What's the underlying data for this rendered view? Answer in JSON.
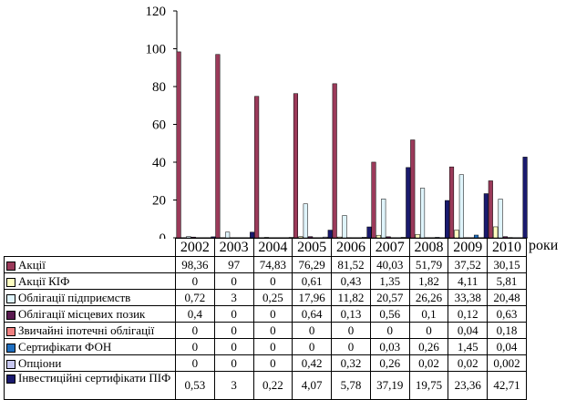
{
  "chart_data": {
    "type": "bar",
    "categories": [
      "2002",
      "2003",
      "2004",
      "2005",
      "2006",
      "2007",
      "2008",
      "2009",
      "2010"
    ],
    "xlabel": "роки",
    "ylim": [
      0,
      120
    ],
    "yticks": [
      0,
      20,
      40,
      60,
      80,
      100,
      120
    ],
    "grid": false,
    "legend": "table-below",
    "series": [
      {
        "name": "Акції",
        "color": "#9b3a5a",
        "values": [
          98.36,
          97,
          74.83,
          76.29,
          81.52,
          40.03,
          51.79,
          37.52,
          30.15
        ],
        "labels": [
          "98,36",
          "97",
          "74,83",
          "76,29",
          "81,52",
          "40,03",
          "51,79",
          "37,52",
          "30,15"
        ]
      },
      {
        "name": "Акції КІФ",
        "color": "#ffffc0",
        "values": [
          0,
          0,
          0,
          0.61,
          0.43,
          1.35,
          1.82,
          4.11,
          5.81
        ],
        "labels": [
          "0",
          "0",
          "0",
          "0,61",
          "0,43",
          "1,35",
          "1,82",
          "4,11",
          "5,81"
        ]
      },
      {
        "name": "Облігації підприємств",
        "color": "#dff4fb",
        "values": [
          0.72,
          3,
          0.25,
          17.96,
          11.82,
          20.57,
          26.26,
          33.38,
          20.48
        ],
        "labels": [
          "0,72",
          "3",
          "0,25",
          "17,96",
          "11,82",
          "20,57",
          "26,26",
          "33,38",
          "20,48"
        ]
      },
      {
        "name": "Облігації місцевих позик",
        "color": "#5a1a50",
        "values": [
          0.4,
          0,
          0,
          0.64,
          0.13,
          0.56,
          0.1,
          0.12,
          0.63
        ],
        "labels": [
          "0,4",
          "0",
          "0",
          "0,64",
          "0,13",
          "0,56",
          "0,1",
          "0,12",
          "0,63"
        ]
      },
      {
        "name": "Звичайні іпотечні облігації",
        "color": "#f08080",
        "values": [
          0,
          0,
          0,
          0,
          0,
          0,
          0,
          0.04,
          0.18
        ],
        "labels": [
          "0",
          "0",
          "0",
          "0",
          "0",
          "0",
          "0",
          "0,04",
          "0,18"
        ]
      },
      {
        "name": "Сертифікати ФОН",
        "color": "#1f6fc0",
        "values": [
          0,
          0,
          0,
          0,
          0,
          0.03,
          0.26,
          1.45,
          0.04
        ],
        "labels": [
          "0",
          "0",
          "0",
          "0",
          "0",
          "0,03",
          "0,26",
          "1,45",
          "0,04"
        ]
      },
      {
        "name": "Опціони",
        "color": "#c8c8f0",
        "values": [
          0,
          0,
          0,
          0.42,
          0.32,
          0.26,
          0.02,
          0.02,
          0.002
        ],
        "labels": [
          "0",
          "0",
          "0",
          "0,42",
          "0,32",
          "0,26",
          "0,02",
          "0,02",
          "0,002"
        ]
      },
      {
        "name": "Інвестиційні сертифікати ПІФ",
        "color": "#1a1a6e",
        "values": [
          0.53,
          3,
          0.22,
          4.07,
          5.78,
          37.19,
          19.75,
          23.36,
          42.71
        ],
        "labels": [
          "0,53",
          "3",
          "0,22",
          "4,07",
          "5,78",
          "37,19",
          "19,75",
          "23,36",
          "42,71"
        ]
      }
    ]
  }
}
